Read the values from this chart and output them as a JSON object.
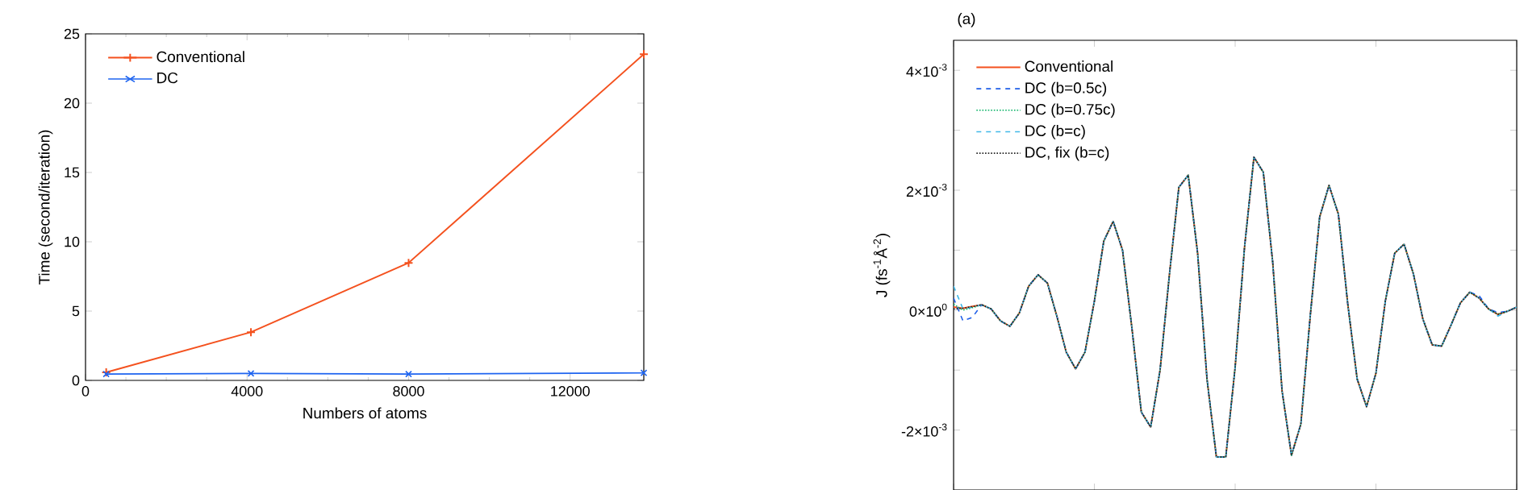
{
  "chart_data": [
    {
      "type": "line",
      "xlabel": "Numbers of atoms",
      "ylabel": "Time (second/iteration)",
      "xlim": [
        0,
        13824
      ],
      "xticks": [
        0,
        4000,
        8000,
        12000
      ],
      "ylim": [
        0,
        25
      ],
      "yticks": [
        0,
        5,
        10,
        15,
        20,
        25
      ],
      "legend": "top left",
      "x": [
        512,
        4096,
        8000,
        13824
      ],
      "series": [
        {
          "name": "Conventional",
          "color": "#f4511e",
          "marker": "plus",
          "values": [
            0.58,
            3.48,
            8.48,
            23.53
          ]
        },
        {
          "name": "DC",
          "color": "#1e64f0",
          "marker": "cross",
          "values": [
            0.46,
            0.5,
            0.46,
            0.54
          ]
        }
      ]
    },
    {
      "type": "line",
      "title": "(a)",
      "ylabel": "J (fs$^{-1}$Å$^{-2}$)",
      "ylim": [
        -0.003,
        0.0045
      ],
      "yticks": [
        {
          "value": -0.003,
          "label": null
        },
        {
          "value": -0.002,
          "label": "-2×10$^{-3}$"
        },
        {
          "value": -0.001,
          "label": null
        },
        {
          "value": 0,
          "label": "0×10$^{0}$"
        },
        {
          "value": 0.001,
          "label": null
        },
        {
          "value": 0.002,
          "label": "2×10$^{-3}$"
        },
        {
          "value": 0.003,
          "label": null
        },
        {
          "value": 0.004,
          "label": "4×10$^{-3}$"
        }
      ],
      "legend": "top left",
      "tick_labels": "y",
      "categories": [
        null,
        null,
        null,
        null,
        null,
        null,
        null,
        null,
        null,
        null,
        null,
        null,
        null,
        null,
        null,
        null,
        null,
        null,
        null,
        null,
        null,
        null,
        null,
        null,
        null,
        null,
        null,
        null,
        null,
        null,
        null,
        null,
        null,
        null,
        null,
        null,
        null,
        null,
        null,
        null,
        null,
        null,
        null,
        null,
        null,
        null,
        null,
        null,
        null,
        null,
        null,
        null,
        null,
        null,
        null,
        null,
        null,
        null,
        null,
        null,
        null
      ],
      "series": [
        {
          "name": "Conventional",
          "color": "#f4511e",
          "line_style": "solid",
          "values": [
            5e-05,
            3e-05,
            6e-05,
            9e-05,
            2e-05,
            -0.00018,
            -0.00027,
            -5e-05,
            0.0004,
            0.00059,
            0.00045,
            -0.0001,
            -0.0007,
            -0.00098,
            -0.0007,
            0.00015,
            0.00115,
            0.00148,
            0.001,
            -0.0003,
            -0.0017,
            -0.00195,
            -0.001,
            0.0006,
            0.00205,
            0.00225,
            0.00095,
            -0.00115,
            -0.00245,
            -0.00245,
            -0.00095,
            0.00105,
            0.00255,
            0.0023,
            0.0008,
            -0.00135,
            -0.00242,
            -0.0019,
            -0.0001,
            0.00155,
            0.00208,
            0.0016,
            0.0001,
            -0.00115,
            -0.00161,
            -0.00105,
            0.00015,
            0.00095,
            0.0011,
            0.0006,
            -0.00015,
            -0.00058,
            -0.0006,
            -0.00025,
            0.00012,
            0.0003,
            0.0002,
            2e-05,
            -7e-05,
            -2e-05,
            5e-05
          ]
        },
        {
          "name": "DC (b=0.5c)",
          "color": "#1e5ee8",
          "line_style": "dashed",
          "values": [
            0.0002,
            -0.00018,
            -0.00012,
            9e-05,
            2e-05,
            -0.00018,
            -0.00027,
            -5e-05,
            0.0004,
            0.00059,
            0.00045,
            -0.0001,
            -0.0007,
            -0.00098,
            -0.0007,
            0.00015,
            0.00115,
            0.00148,
            0.001,
            -0.0003,
            -0.0017,
            -0.00195,
            -0.001,
            0.0006,
            0.00205,
            0.00225,
            0.00095,
            -0.00115,
            -0.00245,
            -0.00245,
            -0.00095,
            0.00105,
            0.00255,
            0.0023,
            0.0008,
            -0.00135,
            -0.00242,
            -0.0019,
            -0.0001,
            0.00155,
            0.00208,
            0.0016,
            0.0001,
            -0.00115,
            -0.00161,
            -0.00105,
            0.00015,
            0.00095,
            0.0011,
            0.0006,
            -0.00015,
            -0.00058,
            -0.0006,
            -0.00025,
            0.00012,
            0.0003,
            0.00024,
            2e-05,
            -4e-05,
            -2e-05,
            5e-05
          ]
        },
        {
          "name": "DC (b=0.75c)",
          "color": "#00b060",
          "line_style": "dotted",
          "values": [
            0.0001,
            0.0,
            4e-05,
            9e-05,
            2e-05,
            -0.00018,
            -0.00027,
            -5e-05,
            0.0004,
            0.00059,
            0.00045,
            -0.0001,
            -0.0007,
            -0.00098,
            -0.0007,
            0.00015,
            0.00115,
            0.00148,
            0.001,
            -0.0003,
            -0.0017,
            -0.00195,
            -0.001,
            0.0006,
            0.00205,
            0.00225,
            0.00095,
            -0.00115,
            -0.00245,
            -0.00245,
            -0.00095,
            0.00105,
            0.00255,
            0.0023,
            0.0008,
            -0.00135,
            -0.00242,
            -0.0019,
            -0.0001,
            0.00155,
            0.00208,
            0.0016,
            0.0001,
            -0.00115,
            -0.00161,
            -0.00105,
            0.00015,
            0.00095,
            0.0011,
            0.0006,
            -0.00015,
            -0.00058,
            -0.0006,
            -0.00025,
            0.00012,
            0.0003,
            0.0002,
            2e-05,
            -7e-05,
            -2e-05,
            5e-05
          ]
        },
        {
          "name": "DC (b=c)",
          "color": "#40b8e8",
          "line_style": "dashed",
          "values": [
            0.0004,
            2e-05,
            5e-05,
            9e-05,
            2e-05,
            -0.00018,
            -0.00027,
            -5e-05,
            0.0004,
            0.00059,
            0.00045,
            -0.0001,
            -0.0007,
            -0.00098,
            -0.0007,
            0.00015,
            0.00115,
            0.00148,
            0.001,
            -0.0003,
            -0.0017,
            -0.00195,
            -0.001,
            0.0006,
            0.00205,
            0.00225,
            0.00095,
            -0.00115,
            -0.00245,
            -0.00245,
            -0.00095,
            0.00105,
            0.00255,
            0.0023,
            0.0008,
            -0.00135,
            -0.00242,
            -0.0019,
            -0.0001,
            0.00155,
            0.00208,
            0.0016,
            0.0001,
            -0.00115,
            -0.00161,
            -0.00105,
            0.00015,
            0.00095,
            0.0011,
            0.0006,
            -0.00015,
            -0.00058,
            -0.0006,
            -0.00025,
            0.00012,
            0.0003,
            0.0002,
            2e-05,
            -0.0001,
            -2e-05,
            5e-05
          ]
        },
        {
          "name": "DC, fix (b=c)",
          "color": "#222222",
          "line_style": "dotted",
          "values": [
            2e-05,
            3e-05,
            6e-05,
            9e-05,
            2e-05,
            -0.00018,
            -0.00027,
            -5e-05,
            0.0004,
            0.00059,
            0.00045,
            -0.0001,
            -0.0007,
            -0.00098,
            -0.0007,
            0.00015,
            0.00115,
            0.00148,
            0.001,
            -0.0003,
            -0.0017,
            -0.00195,
            -0.001,
            0.0006,
            0.00205,
            0.00225,
            0.00095,
            -0.00115,
            -0.00245,
            -0.00245,
            -0.00095,
            0.00105,
            0.00255,
            0.0023,
            0.0008,
            -0.00135,
            -0.00242,
            -0.0019,
            -0.0001,
            0.00155,
            0.00208,
            0.0016,
            0.0001,
            -0.00115,
            -0.00161,
            -0.00105,
            0.00015,
            0.00095,
            0.0011,
            0.0006,
            -0.00015,
            -0.00058,
            -0.0006,
            -0.00025,
            0.00012,
            0.0003,
            0.0002,
            2e-05,
            -7e-05,
            -2e-05,
            5e-05
          ]
        }
      ]
    }
  ]
}
